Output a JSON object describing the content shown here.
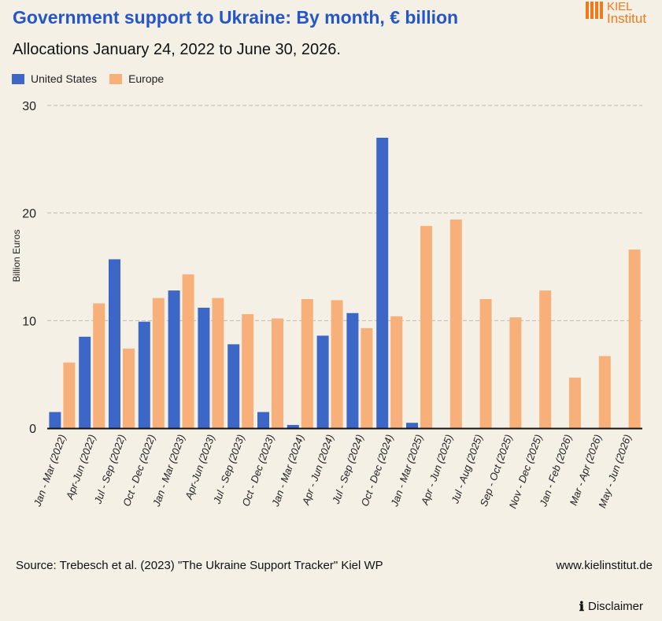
{
  "header": {
    "title": "Government support to Ukraine: By month, € billion",
    "subtitle": "Allocations January 24, 2022 to June 30, 2026.",
    "logo_line1": "KIEL",
    "logo_line2": "Institut"
  },
  "footer": {
    "source": "Source: Trebesch et al. (2023) \"The Ukraine Support Tracker\" Kiel WP",
    "website": "www.kielinstitut.de",
    "disclaimer": "Disclaimer"
  },
  "colors": {
    "united_states": "#3d67c6",
    "europe": "#f8b07a",
    "title": "#2456c8",
    "logo": "#f07a1a"
  },
  "chart_data": {
    "type": "bar",
    "ylabel": "Billion Euros",
    "ylim": [
      0,
      30
    ],
    "yticks": [
      0,
      10,
      20,
      30
    ],
    "grid": true,
    "legend_position": "top-left",
    "categories": [
      "Jan - Mar (2022)",
      "Apr-Jun (2022)",
      "Jul - Sep (2022)",
      "Oct - Dec (2022)",
      "Jan - Mar (2023)",
      "Apr-Jun (2023)",
      "Jul - Sep (2023)",
      "Oct - Dec (2023)",
      "Jan - Mar (2024)",
      "Apr - Jun (2024)",
      "Jul - Sep (2024)",
      "Oct - Dec (2024)",
      "Jan - Mar (2025)",
      "Apr - Jun (2025)",
      "Jul - Aug (2025)",
      "Sep - Oct (2025)",
      "Nov - Dec (2025)",
      "Jan - Feb (2026)",
      "Mar - Apr (2026)",
      "May - Jun (2026)"
    ],
    "series": [
      {
        "name": "United States",
        "values": [
          1.5,
          8.5,
          15.7,
          9.9,
          12.8,
          11.2,
          7.8,
          1.5,
          0.3,
          8.6,
          10.7,
          27.0,
          0.5,
          0,
          0,
          0,
          0,
          0,
          0,
          0
        ]
      },
      {
        "name": "Europe",
        "values": [
          6.1,
          11.6,
          7.4,
          12.1,
          14.3,
          12.1,
          10.6,
          10.2,
          12.0,
          11.9,
          9.3,
          10.4,
          18.8,
          19.4,
          12.0,
          10.3,
          12.8,
          4.7,
          6.7,
          16.6
        ]
      }
    ]
  }
}
